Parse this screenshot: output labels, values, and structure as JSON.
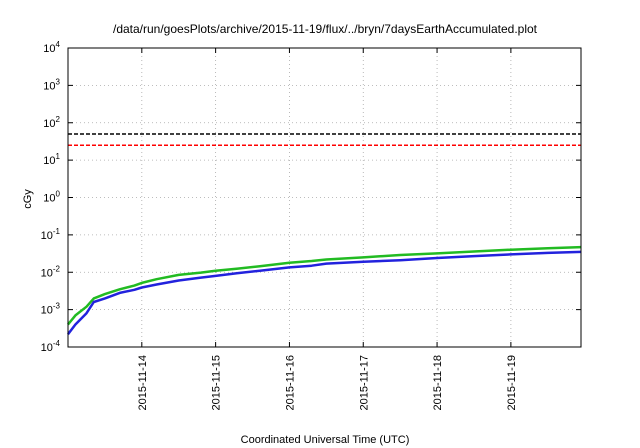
{
  "chart_data": {
    "type": "line",
    "title": "/data/run/goesPlots/archive/2015-11-19/flux/../bryn/7daysEarthAccumulated.plot",
    "xlabel": "Coordinated Universal Time (UTC)",
    "ylabel": "cGy",
    "yscale": "log",
    "ylim": [
      0.0001,
      10000
    ],
    "xlim": [
      13.0,
      19.95
    ],
    "y_ticks": [
      {
        "base": "10",
        "exp": "4",
        "value": 10000
      },
      {
        "base": "10",
        "exp": "3",
        "value": 1000
      },
      {
        "base": "10",
        "exp": "2",
        "value": 100
      },
      {
        "base": "10",
        "exp": "1",
        "value": 10
      },
      {
        "base": "10",
        "exp": "0",
        "value": 1
      },
      {
        "base": "10",
        "exp": "-1",
        "value": 0.1
      },
      {
        "base": "10",
        "exp": "-2",
        "value": 0.01
      },
      {
        "base": "10",
        "exp": "-3",
        "value": 0.001
      },
      {
        "base": "10",
        "exp": "-4",
        "value": 0.0001
      }
    ],
    "x_ticks": [
      {
        "label": "2015-11-14",
        "value": 14
      },
      {
        "label": "2015-11-15",
        "value": 15
      },
      {
        "label": "2015-11-16",
        "value": 16
      },
      {
        "label": "2015-11-17",
        "value": 17
      },
      {
        "label": "2015-11-18",
        "value": 18
      },
      {
        "label": "2015-11-19",
        "value": 19
      }
    ],
    "grid": true,
    "reference_lines": [
      {
        "value": 50,
        "color": "#000000",
        "style": "dashed"
      },
      {
        "value": 25,
        "color": "#ff0000",
        "style": "dashed"
      }
    ],
    "series": [
      {
        "color": "#22bb22",
        "x": [
          13.0,
          13.1,
          13.25,
          13.35,
          13.5,
          13.7,
          13.9,
          14.0,
          14.2,
          14.5,
          14.8,
          15.0,
          15.3,
          15.6,
          16.0,
          16.3,
          16.5,
          17.0,
          17.5,
          18.0,
          18.5,
          19.0,
          19.5,
          19.95
        ],
        "y": [
          0.0004,
          0.0007,
          0.0012,
          0.002,
          0.0026,
          0.0035,
          0.0044,
          0.0052,
          0.0065,
          0.0085,
          0.0098,
          0.011,
          0.0125,
          0.0145,
          0.018,
          0.02,
          0.022,
          0.025,
          0.029,
          0.032,
          0.036,
          0.04,
          0.044,
          0.047
        ]
      },
      {
        "color": "#2222dd",
        "x": [
          13.0,
          13.1,
          13.25,
          13.35,
          13.5,
          13.7,
          13.9,
          14.0,
          14.2,
          14.5,
          14.8,
          15.0,
          15.3,
          15.6,
          16.0,
          16.3,
          16.5,
          17.0,
          17.5,
          18.0,
          18.5,
          19.0,
          19.5,
          19.95
        ],
        "y": [
          0.00022,
          0.0004,
          0.0008,
          0.0016,
          0.002,
          0.0028,
          0.0034,
          0.0039,
          0.0047,
          0.006,
          0.0072,
          0.008,
          0.0095,
          0.011,
          0.0135,
          0.015,
          0.017,
          0.019,
          0.021,
          0.024,
          0.027,
          0.03,
          0.033,
          0.035
        ]
      }
    ]
  }
}
